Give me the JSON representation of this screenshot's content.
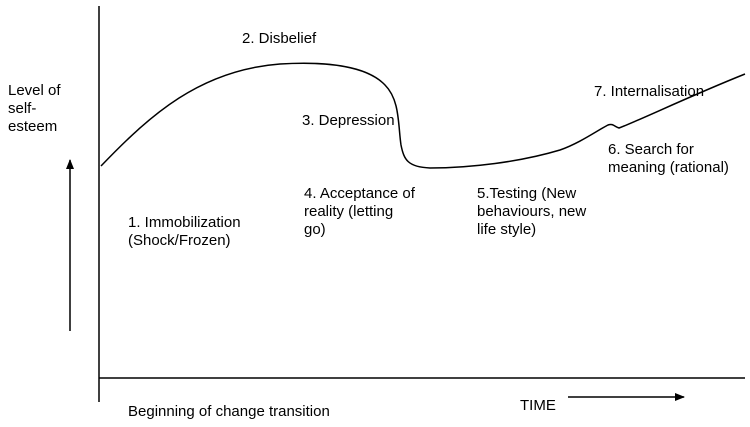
{
  "y_axis_label": "Level of\nself-\nesteem",
  "x_axis_start_label": "Beginning of change transition",
  "x_axis_time_label": "TIME",
  "stages": [
    {
      "id": "immobilization",
      "text": "1. Immobilization\n(Shock/Frozen)"
    },
    {
      "id": "disbelief",
      "text": "2. Disbelief"
    },
    {
      "id": "depression",
      "text": "3. Depression"
    },
    {
      "id": "acceptance",
      "text": "4. Acceptance of\nreality (letting\ngo)"
    },
    {
      "id": "testing",
      "text": "5.Testing (New\nbehaviours, new\nlife style)"
    },
    {
      "id": "search",
      "text": "6. Search for\nmeaning (rational)"
    },
    {
      "id": "internalisation",
      "text": "7. Internalisation"
    }
  ],
  "colors": {
    "ink": "#000000",
    "background": "#ffffff"
  }
}
